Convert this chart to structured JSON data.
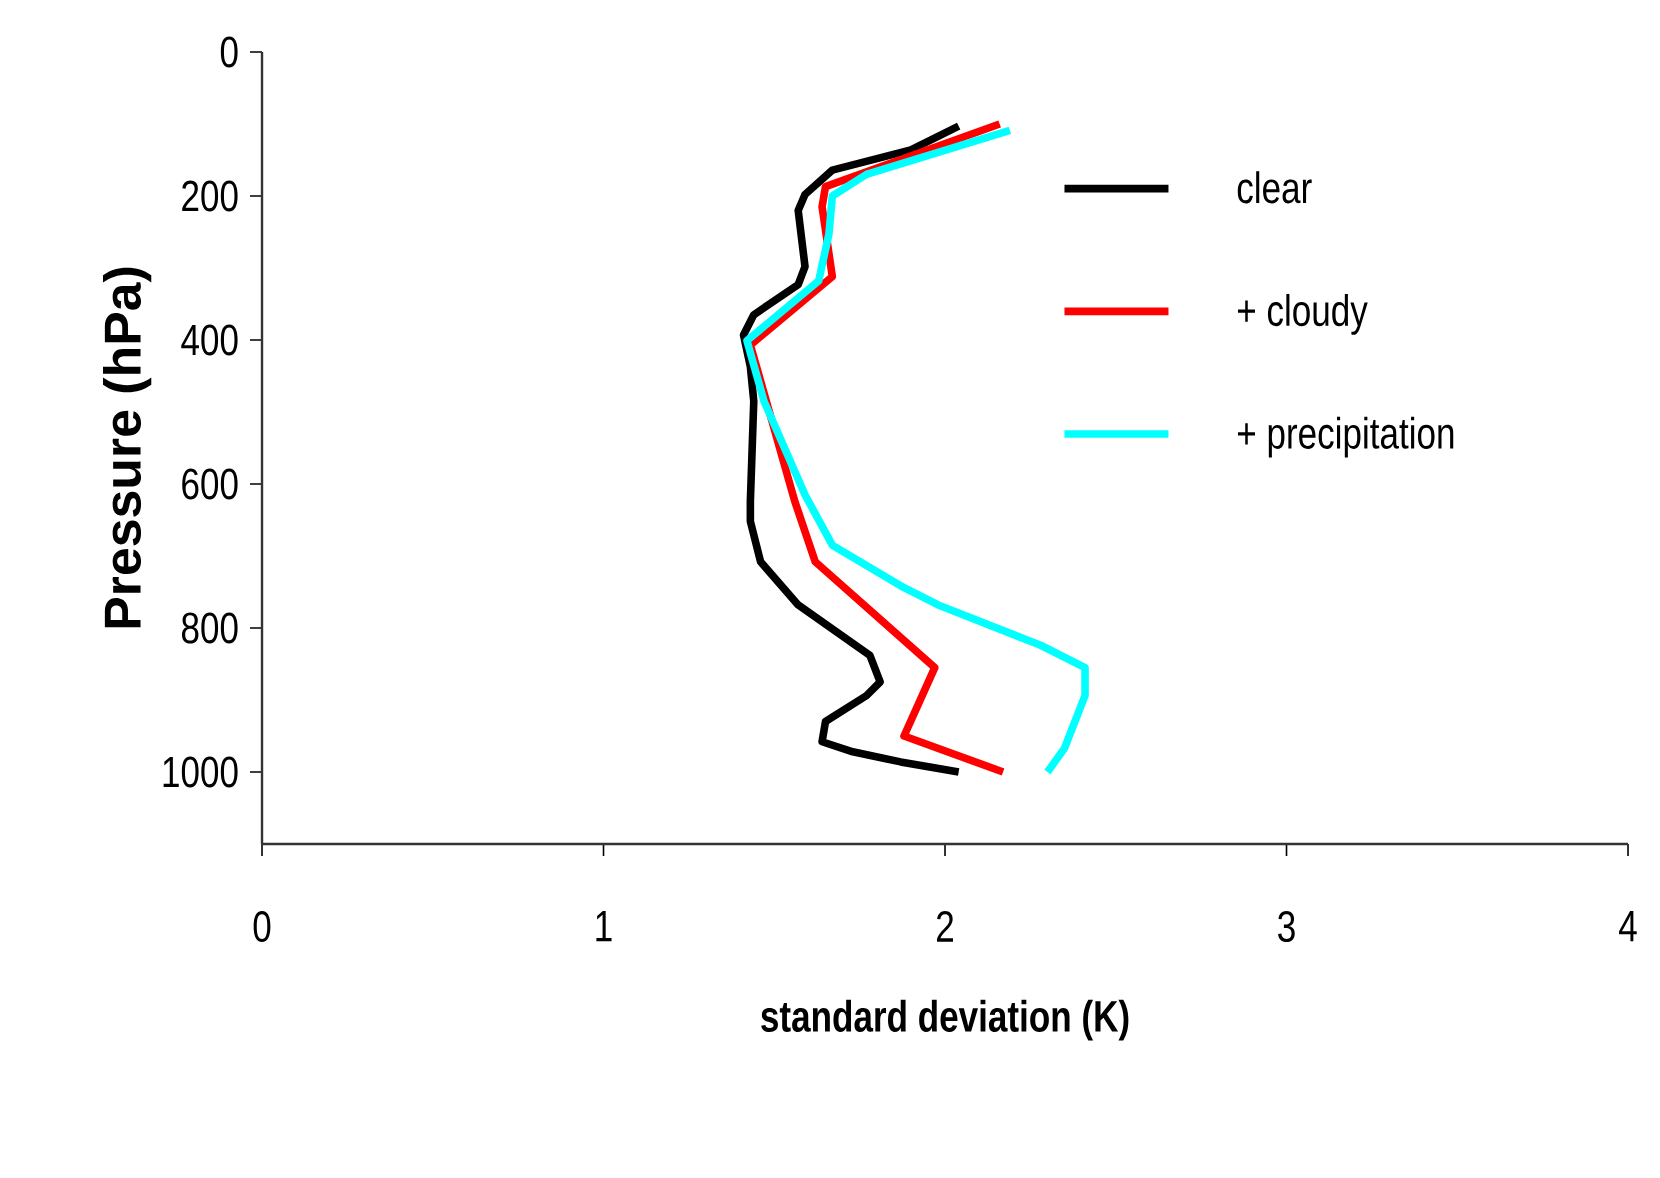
{
  "chart_data": {
    "type": "line",
    "xlabel": "standard deviation (K)",
    "ylabel": "Pressure (hPa)",
    "xlim": [
      0,
      4
    ],
    "xticks": [
      0,
      1,
      2,
      3,
      4
    ],
    "ylim": [
      1100,
      0
    ],
    "yticks": [
      0,
      200,
      400,
      600,
      800,
      1000
    ],
    "grid": false,
    "legend": "right",
    "marker": "none",
    "line_style": "solid",
    "series": [
      {
        "name": "clear",
        "color": "#000000",
        "x": [
          2.04,
          1.9,
          1.67,
          1.59,
          1.57,
          1.59,
          1.57,
          1.44,
          1.41,
          1.43,
          1.44,
          1.43,
          1.43,
          1.46,
          1.57,
          1.78,
          1.81,
          1.77,
          1.65,
          1.64,
          1.73,
          1.87,
          2.04
        ],
        "values": [
          103,
          136,
          164,
          198,
          220,
          298,
          323,
          365,
          393,
          437,
          485,
          624,
          652,
          708,
          768,
          838,
          875,
          894,
          930,
          958,
          972,
          986,
          1000
        ]
      },
      {
        "name": "+ cloudy",
        "color": "#ff0000",
        "x": [
          2.16,
          1.65,
          1.64,
          1.67,
          1.43,
          1.46,
          1.56,
          1.62,
          1.97,
          1.88,
          2.17
        ],
        "values": [
          100,
          187,
          215,
          312,
          407,
          457,
          624,
          708,
          855,
          950,
          1000
        ]
      },
      {
        "name": "+ precipitation",
        "color": "#00ffff",
        "x": [
          2.19,
          1.77,
          1.67,
          1.66,
          1.63,
          1.42,
          1.47,
          1.59,
          1.67,
          1.88,
          1.98,
          2.28,
          2.41,
          2.41,
          2.35,
          2.3
        ],
        "values": [
          109,
          170,
          200,
          253,
          318,
          401,
          485,
          615,
          685,
          744,
          768,
          824,
          855,
          894,
          967,
          1000
        ]
      }
    ]
  }
}
